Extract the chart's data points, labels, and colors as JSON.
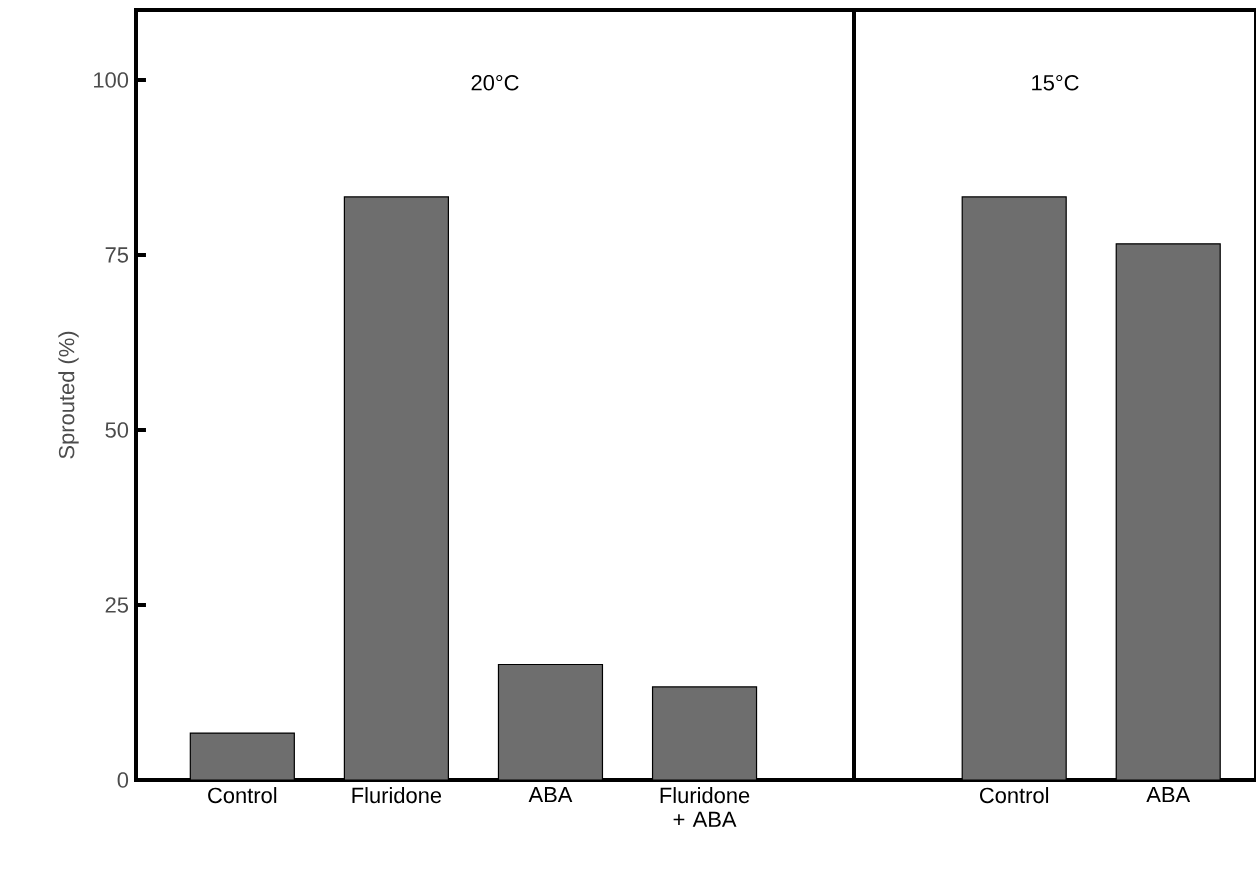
{
  "chart_data": [
    {
      "type": "bar",
      "title": "20°C",
      "ylabel": "Sprouted (%)",
      "categories": [
        "Control",
        "Fluridone",
        "ABA",
        "Fluridone + ABA"
      ],
      "values": [
        6.7,
        83.3,
        16.5,
        13.3
      ],
      "color": "#6e6e6e",
      "ylim": [
        0,
        110
      ],
      "yticks": [
        0,
        25,
        50,
        75,
        100
      ]
    },
    {
      "type": "bar",
      "title": "15°C",
      "categories": [
        "Control",
        "ABA"
      ],
      "values": [
        83.3,
        76.6
      ],
      "color": "#6e6e6e",
      "ylim": [
        0,
        110
      ],
      "tick_labels": "x"
    }
  ]
}
